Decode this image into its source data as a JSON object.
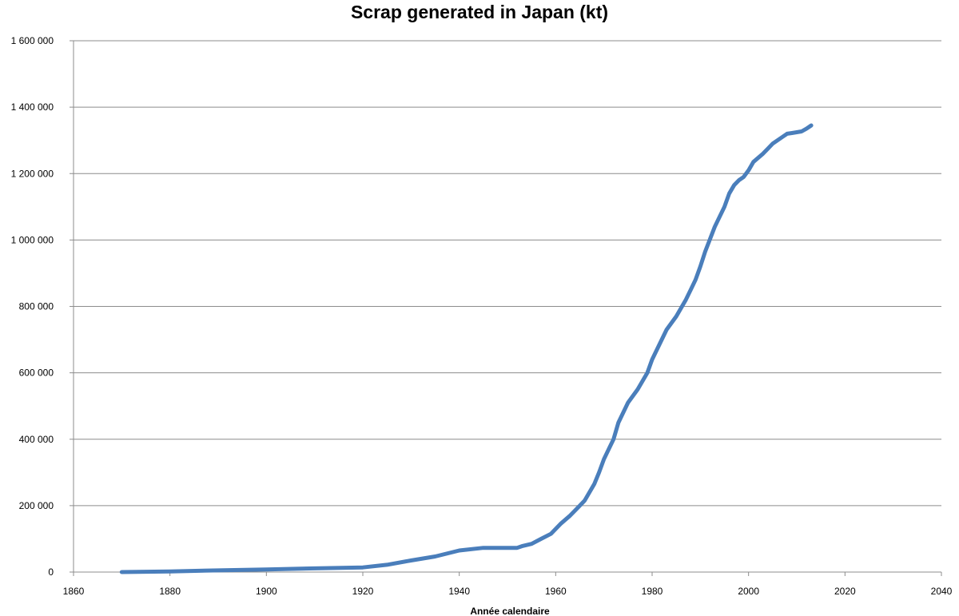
{
  "chart_data": {
    "type": "line",
    "title": "Scrap generated in Japan (kt)",
    "xlabel": "Année calendaire",
    "ylabel": "",
    "xlim": [
      1860,
      2040
    ],
    "ylim": [
      0,
      1600000
    ],
    "x_ticks": [
      1860,
      1880,
      1900,
      1920,
      1940,
      1960,
      1980,
      2000,
      2020,
      2040
    ],
    "x_tick_labels": [
      "1860",
      "1880",
      "1900",
      "1920",
      "1940",
      "1960",
      "1980",
      "2000",
      "2020",
      "2040"
    ],
    "y_ticks": [
      0,
      200000,
      400000,
      600000,
      800000,
      1000000,
      1200000,
      1400000,
      1600000
    ],
    "y_tick_labels": [
      "0",
      "200 000",
      "400 000",
      "600 000",
      "800 000",
      "1 000 000",
      "1 200 000",
      "1 400 000",
      "1 600 000"
    ],
    "grid": "horizontal",
    "legend": "none",
    "line_color": "#4a7ebb",
    "series": [
      {
        "x": [
          1870,
          1880,
          1890,
          1900,
          1910,
          1920,
          1925,
          1930,
          1935,
          1940,
          1945,
          1950,
          1952,
          1953,
          1955,
          1957,
          1959,
          1961,
          1963,
          1965,
          1966,
          1968,
          1969,
          1970,
          1971,
          1972,
          1973,
          1975,
          1977,
          1979,
          1980,
          1983,
          1985,
          1987,
          1988,
          1989,
          1990,
          1991,
          1993,
          1995,
          1996,
          1997,
          1998,
          1999,
          2000,
          2001,
          2003,
          2004,
          2005,
          2007,
          2008,
          2009,
          2011,
          2012,
          2013
        ],
        "y": [
          0,
          2000,
          5000,
          8000,
          11000,
          14000,
          22000,
          35000,
          47000,
          65000,
          73000,
          73000,
          73000,
          78000,
          85000,
          100000,
          115000,
          145000,
          170000,
          200000,
          215000,
          265000,
          300000,
          340000,
          370000,
          400000,
          450000,
          510000,
          550000,
          600000,
          640000,
          730000,
          770000,
          820000,
          850000,
          880000,
          920000,
          965000,
          1040000,
          1100000,
          1140000,
          1165000,
          1180000,
          1190000,
          1210000,
          1235000,
          1260000,
          1275000,
          1290000,
          1310000,
          1320000,
          1322000,
          1327000,
          1335000,
          1345000
        ]
      }
    ]
  }
}
